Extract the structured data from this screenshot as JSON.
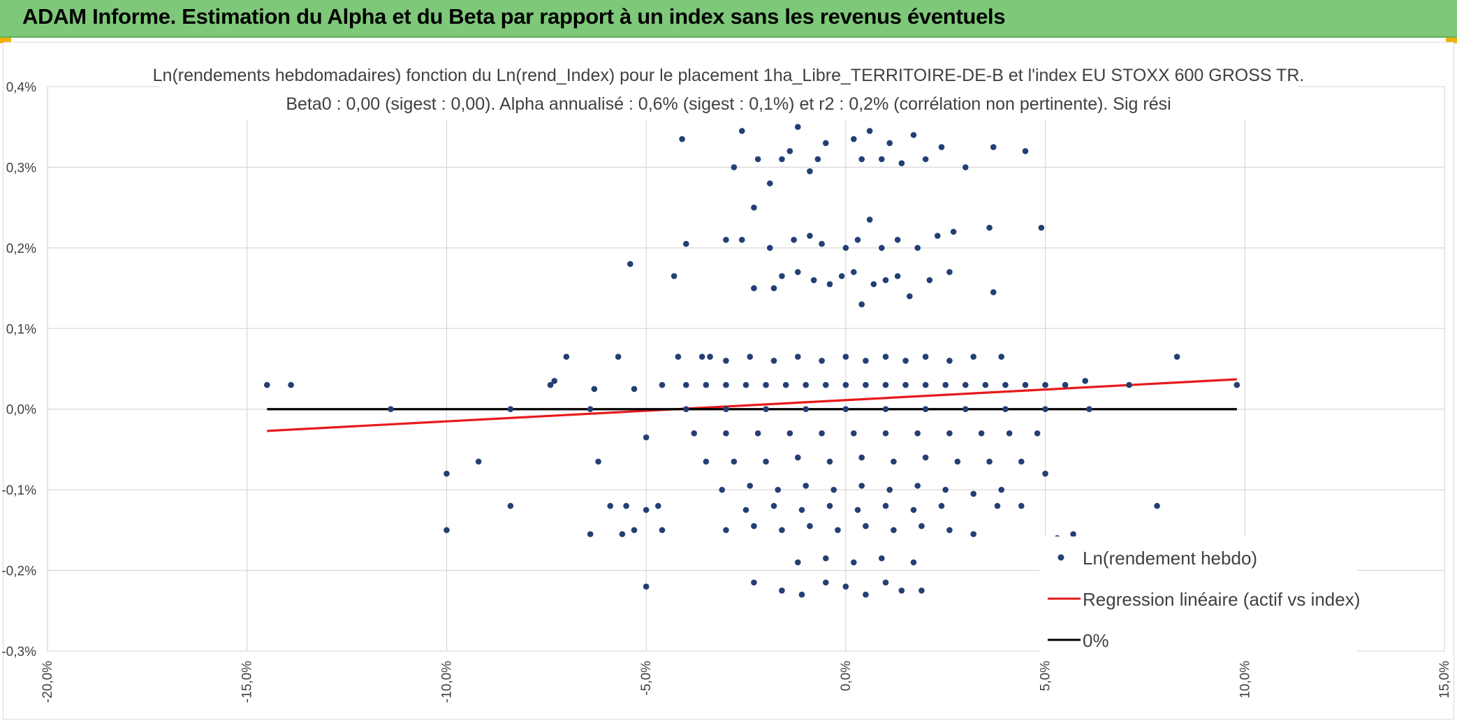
{
  "header": {
    "title": "ADAM Informe. Estimation du Alpha et du Beta par rapport à un index sans les revenus éventuels",
    "colors": {
      "background": "#7ec87a",
      "corner_accent": "#f2b100"
    }
  },
  "chart_data": {
    "type": "scatter",
    "title": "Ln(rendements hebdomadaires) fonction du Ln(rend_Index) pour le placement 1ha_Libre_TERRITOIRE-DE-B et l'index EU STOXX 600 GROSS TR.",
    "subtitle": "Beta0 : 0,00 (sigest : 0,00). Alpha annualisé : 0,6% (sigest : 0,1%) et r2 : 0,2% (corrélation non pertinente). Sig rési",
    "xlabel": "",
    "ylabel": "",
    "xlim": [
      -20,
      15
    ],
    "ylim": [
      -0.3,
      0.4
    ],
    "x_ticks": [
      -20,
      -15,
      -10,
      -5,
      0,
      5,
      10,
      15
    ],
    "y_ticks": [
      -0.3,
      -0.2,
      -0.1,
      0.0,
      0.1,
      0.2,
      0.3,
      0.4
    ],
    "x_tick_labels": [
      "-20,0%",
      "-15,0%",
      "-10,0%",
      "-5,0%",
      "0,0%",
      "5,0%",
      "10,0%",
      "15,0%"
    ],
    "y_tick_labels": [
      "-0,3%",
      "-0,2%",
      "-0,1%",
      "0,0%",
      "0,1%",
      "0,2%",
      "0,3%",
      "0,4%"
    ],
    "grid": true,
    "legend_position": "bottom-right",
    "series": [
      {
        "name": "Ln(rendement hebdo)",
        "kind": "scatter",
        "color": "#243f73",
        "points": [
          [
            -14.5,
            0.03
          ],
          [
            -13.9,
            0.03
          ],
          [
            -11.4,
            0.0
          ],
          [
            -8.4,
            0.0
          ],
          [
            -8.4,
            -0.12
          ],
          [
            -7.4,
            0.03
          ],
          [
            -7.3,
            0.035
          ],
          [
            -7.0,
            0.065
          ],
          [
            -6.4,
            -0.155
          ],
          [
            -6.3,
            0.025
          ],
          [
            -6.2,
            -0.065
          ],
          [
            -6.4,
            0.0
          ],
          [
            -5.9,
            -0.12
          ],
          [
            -5.7,
            0.065
          ],
          [
            -5.6,
            -0.155
          ],
          [
            -5.5,
            -0.12
          ],
          [
            -5.4,
            0.18
          ],
          [
            -5.3,
            -0.15
          ],
          [
            -5.3,
            0.025
          ],
          [
            -5.0,
            -0.035
          ],
          [
            -5.0,
            -0.125
          ],
          [
            -5.0,
            -0.22
          ],
          [
            -4.7,
            -0.12
          ],
          [
            -4.6,
            -0.15
          ],
          [
            -4.2,
            0.065
          ],
          [
            -4.3,
            0.165
          ],
          [
            -4.1,
            0.335
          ],
          [
            -4.0,
            0.205
          ],
          [
            -9.2,
            -0.065
          ],
          [
            -10.0,
            -0.08
          ],
          [
            -10.0,
            -0.15
          ],
          [
            -3.4,
            0.065
          ],
          [
            -3.0,
            0.21
          ],
          [
            -2.8,
            0.3
          ],
          [
            -2.6,
            0.345
          ],
          [
            -2.3,
            0.25
          ],
          [
            -2.2,
            0.31
          ],
          [
            -1.9,
            0.28
          ],
          [
            -1.8,
            0.15
          ],
          [
            -1.6,
            0.31
          ],
          [
            -1.4,
            0.32
          ],
          [
            -1.2,
            0.35
          ],
          [
            -0.9,
            0.295
          ],
          [
            -0.7,
            0.31
          ],
          [
            -0.5,
            0.33
          ],
          [
            0.2,
            0.335
          ],
          [
            0.4,
            0.31
          ],
          [
            0.6,
            0.345
          ],
          [
            0.9,
            0.31
          ],
          [
            1.1,
            0.33
          ],
          [
            1.4,
            0.305
          ],
          [
            1.7,
            0.34
          ],
          [
            2.0,
            0.31
          ],
          [
            2.4,
            0.325
          ],
          [
            3.0,
            0.3
          ],
          [
            3.7,
            0.325
          ],
          [
            4.5,
            0.32
          ],
          [
            -2.6,
            0.21
          ],
          [
            -1.9,
            0.2
          ],
          [
            -1.3,
            0.21
          ],
          [
            -0.9,
            0.215
          ],
          [
            -0.6,
            0.205
          ],
          [
            0.0,
            0.2
          ],
          [
            0.3,
            0.21
          ],
          [
            0.6,
            0.235
          ],
          [
            0.9,
            0.2
          ],
          [
            1.3,
            0.21
          ],
          [
            1.8,
            0.2
          ],
          [
            2.3,
            0.215
          ],
          [
            2.7,
            0.22
          ],
          [
            3.6,
            0.225
          ],
          [
            4.9,
            0.225
          ],
          [
            -2.3,
            0.15
          ],
          [
            -1.6,
            0.165
          ],
          [
            -1.2,
            0.17
          ],
          [
            -0.8,
            0.16
          ],
          [
            -0.4,
            0.155
          ],
          [
            -0.1,
            0.165
          ],
          [
            0.2,
            0.17
          ],
          [
            0.4,
            0.13
          ],
          [
            0.7,
            0.155
          ],
          [
            1.0,
            0.16
          ],
          [
            1.3,
            0.165
          ],
          [
            1.6,
            0.14
          ],
          [
            2.1,
            0.16
          ],
          [
            2.6,
            0.17
          ],
          [
            3.7,
            0.145
          ],
          [
            -3.6,
            0.065
          ],
          [
            -3.0,
            0.06
          ],
          [
            -2.4,
            0.065
          ],
          [
            -1.8,
            0.06
          ],
          [
            -1.2,
            0.065
          ],
          [
            -0.6,
            0.06
          ],
          [
            0.0,
            0.065
          ],
          [
            0.5,
            0.06
          ],
          [
            1.0,
            0.065
          ],
          [
            1.5,
            0.06
          ],
          [
            2.0,
            0.065
          ],
          [
            2.6,
            0.06
          ],
          [
            3.2,
            0.065
          ],
          [
            3.9,
            0.065
          ],
          [
            -4.6,
            0.03
          ],
          [
            -4.0,
            0.03
          ],
          [
            -3.5,
            0.03
          ],
          [
            -3.0,
            0.03
          ],
          [
            -2.5,
            0.03
          ],
          [
            -2.0,
            0.03
          ],
          [
            -1.5,
            0.03
          ],
          [
            -1.0,
            0.03
          ],
          [
            -0.5,
            0.03
          ],
          [
            0.0,
            0.03
          ],
          [
            0.5,
            0.03
          ],
          [
            1.0,
            0.03
          ],
          [
            1.5,
            0.03
          ],
          [
            2.0,
            0.03
          ],
          [
            2.5,
            0.03
          ],
          [
            3.0,
            0.03
          ],
          [
            3.5,
            0.03
          ],
          [
            4.0,
            0.03
          ],
          [
            4.5,
            0.03
          ],
          [
            5.0,
            0.03
          ],
          [
            5.5,
            0.03
          ],
          [
            6.0,
            0.035
          ],
          [
            7.1,
            0.03
          ],
          [
            8.3,
            0.065
          ],
          [
            9.8,
            0.03
          ],
          [
            -4.0,
            0.0
          ],
          [
            -3.0,
            0.0
          ],
          [
            -2.0,
            0.0
          ],
          [
            -1.0,
            0.0
          ],
          [
            0.0,
            0.0
          ],
          [
            1.0,
            0.0
          ],
          [
            2.0,
            0.0
          ],
          [
            3.0,
            0.0
          ],
          [
            4.0,
            0.0
          ],
          [
            5.0,
            0.0
          ],
          [
            6.1,
            0.0
          ],
          [
            -3.8,
            -0.03
          ],
          [
            -3.0,
            -0.03
          ],
          [
            -2.2,
            -0.03
          ],
          [
            -1.4,
            -0.03
          ],
          [
            -0.6,
            -0.03
          ],
          [
            0.2,
            -0.03
          ],
          [
            1.0,
            -0.03
          ],
          [
            1.8,
            -0.03
          ],
          [
            2.6,
            -0.03
          ],
          [
            3.4,
            -0.03
          ],
          [
            4.1,
            -0.03
          ],
          [
            4.8,
            -0.03
          ],
          [
            -3.5,
            -0.065
          ],
          [
            -2.8,
            -0.065
          ],
          [
            -2.0,
            -0.065
          ],
          [
            -1.2,
            -0.06
          ],
          [
            -0.4,
            -0.065
          ],
          [
            0.4,
            -0.06
          ],
          [
            1.2,
            -0.065
          ],
          [
            2.0,
            -0.06
          ],
          [
            2.8,
            -0.065
          ],
          [
            3.6,
            -0.065
          ],
          [
            4.4,
            -0.065
          ],
          [
            -3.1,
            -0.1
          ],
          [
            -2.4,
            -0.095
          ],
          [
            -1.7,
            -0.1
          ],
          [
            -1.0,
            -0.095
          ],
          [
            -0.3,
            -0.1
          ],
          [
            0.4,
            -0.095
          ],
          [
            1.1,
            -0.1
          ],
          [
            1.8,
            -0.095
          ],
          [
            2.5,
            -0.1
          ],
          [
            3.2,
            -0.105
          ],
          [
            3.9,
            -0.1
          ],
          [
            5.0,
            -0.08
          ],
          [
            -2.5,
            -0.125
          ],
          [
            -1.8,
            -0.12
          ],
          [
            -1.1,
            -0.125
          ],
          [
            -0.4,
            -0.12
          ],
          [
            0.3,
            -0.125
          ],
          [
            1.0,
            -0.12
          ],
          [
            1.7,
            -0.125
          ],
          [
            2.4,
            -0.12
          ],
          [
            3.8,
            -0.12
          ],
          [
            4.4,
            -0.12
          ],
          [
            -3.0,
            -0.15
          ],
          [
            -2.3,
            -0.145
          ],
          [
            -1.6,
            -0.15
          ],
          [
            -0.9,
            -0.145
          ],
          [
            -0.2,
            -0.15
          ],
          [
            0.5,
            -0.145
          ],
          [
            1.2,
            -0.15
          ],
          [
            1.9,
            -0.145
          ],
          [
            2.6,
            -0.15
          ],
          [
            3.2,
            -0.155
          ],
          [
            5.3,
            -0.16
          ],
          [
            5.7,
            -0.155
          ],
          [
            7.8,
            -0.12
          ],
          [
            -1.2,
            -0.19
          ],
          [
            -0.5,
            -0.185
          ],
          [
            0.2,
            -0.19
          ],
          [
            0.9,
            -0.185
          ],
          [
            1.7,
            -0.19
          ],
          [
            -2.3,
            -0.215
          ],
          [
            -1.6,
            -0.225
          ],
          [
            -1.1,
            -0.23
          ],
          [
            -0.5,
            -0.215
          ],
          [
            0.0,
            -0.22
          ],
          [
            0.5,
            -0.23
          ],
          [
            1.0,
            -0.215
          ],
          [
            1.4,
            -0.225
          ],
          [
            1.9,
            -0.225
          ]
        ]
      },
      {
        "name": "Regression linéaire (actif vs index)",
        "kind": "line",
        "color": "#e8191a",
        "x": [
          -14.5,
          9.8
        ],
        "y": [
          -0.027,
          0.037
        ]
      },
      {
        "name": "0%",
        "kind": "line",
        "color": "#000000",
        "x": [
          -14.5,
          9.8
        ],
        "y": [
          0.0,
          0.0
        ]
      }
    ]
  }
}
